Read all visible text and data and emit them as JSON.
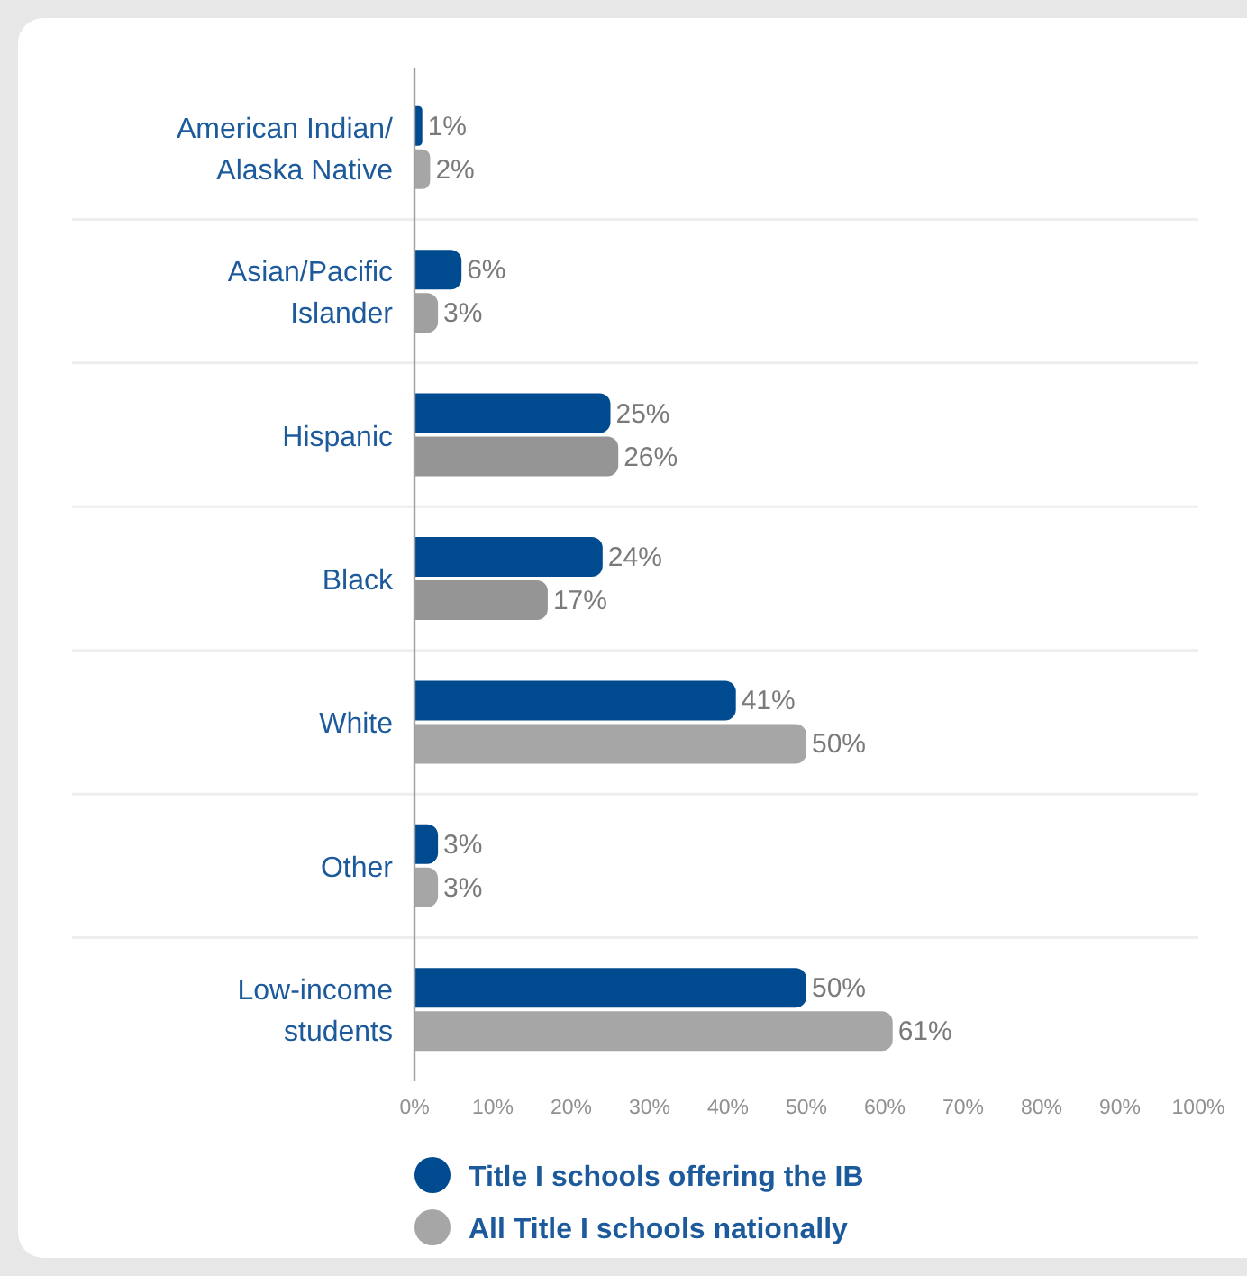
{
  "chart_data": {
    "type": "bar",
    "orientation": "horizontal",
    "categories": [
      "American Indian/Alaska Native",
      "Asian/Pacific Islander",
      "Hispanic",
      "Black",
      "White",
      "Other",
      "Low-income students"
    ],
    "series": [
      {
        "name": "Title I schools offering the IB",
        "color": "#004a8f",
        "values": [
          1,
          6,
          25,
          24,
          41,
          3,
          50
        ],
        "value_labels": [
          "1%",
          "6%",
          "25%",
          "24%",
          "41%",
          "3%",
          "50%"
        ]
      },
      {
        "name": "All Title I schools nationally",
        "color": "#a6a6a6",
        "colors": [
          "#a6a6a6",
          "#a0a0a0",
          "#959595",
          "#959595",
          "#a6a6a6",
          "#a6a6a6",
          "#a6a6a6"
        ],
        "values": [
          2,
          3,
          26,
          17,
          50,
          3,
          61
        ],
        "value_labels": [
          "2%",
          "3%",
          "26%",
          "17%",
          "50%",
          "3%",
          "61%"
        ]
      }
    ],
    "xlim": [
      0,
      100
    ],
    "xticks": [
      {
        "value": 0,
        "label": "0%"
      },
      {
        "value": 10,
        "label": "10%"
      },
      {
        "value": 20,
        "label": "20%"
      },
      {
        "value": 30,
        "label": "30%"
      },
      {
        "value": 40,
        "label": "40%"
      },
      {
        "value": 50,
        "label": "50%"
      },
      {
        "value": 60,
        "label": "60%"
      },
      {
        "value": 70,
        "label": "70%"
      },
      {
        "value": 80,
        "label": "80%"
      },
      {
        "value": 90,
        "label": "90%"
      },
      {
        "value": 100,
        "label": "100%"
      }
    ],
    "grid": "y",
    "legend": "bottom"
  }
}
